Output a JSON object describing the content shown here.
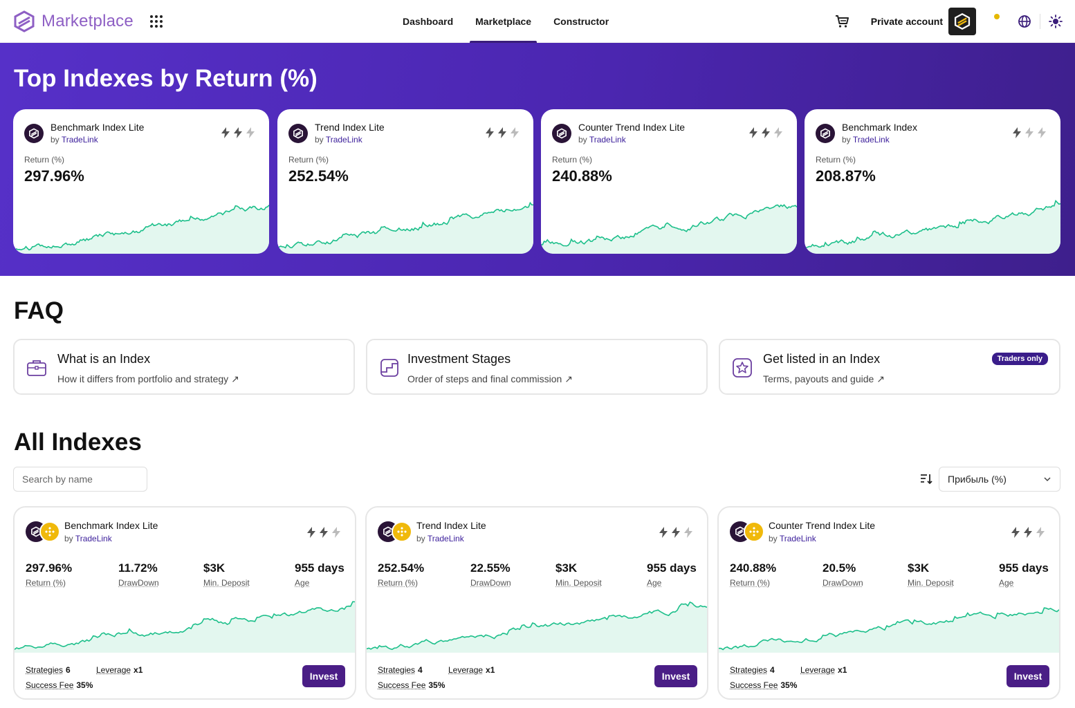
{
  "header": {
    "logo_text": "Marketplace",
    "nav": [
      "Dashboard",
      "Marketplace",
      "Constructor"
    ],
    "active_nav": "Marketplace",
    "account_label": "Private account",
    "accent": "#3a1d7a"
  },
  "hero": {
    "title": "Top Indexes by Return (%)",
    "return_label": "Return (%)",
    "by": "by",
    "cards": [
      {
        "name": "Benchmark Index Lite",
        "provider": "TradeLink",
        "return": "297.96%",
        "bolts_active": 2
      },
      {
        "name": "Trend Index Lite",
        "provider": "TradeLink",
        "return": "252.54%",
        "bolts_active": 2
      },
      {
        "name": "Counter Trend Index Lite",
        "provider": "TradeLink",
        "return": "240.88%",
        "bolts_active": 2
      },
      {
        "name": "Benchmark Index",
        "provider": "TradeLink",
        "return": "208.87%",
        "bolts_active": 1
      }
    ]
  },
  "faq": {
    "title": "FAQ",
    "items": [
      {
        "title": "What is an Index",
        "subtitle": "How it differs from portfolio and strategy ↗",
        "icon": "briefcase-icon"
      },
      {
        "title": "Investment Stages",
        "subtitle": "Order of steps and final commission ↗",
        "icon": "stages-icon"
      },
      {
        "title": "Get listed in an Index",
        "subtitle": "Terms, payouts and guide ↗",
        "icon": "star-icon",
        "badge": "Traders only"
      }
    ]
  },
  "all_indexes": {
    "title": "All Indexes",
    "search_placeholder": "Search by name",
    "sort_value": "Прибыль (%)",
    "labels": {
      "return": "Return (%)",
      "drawdown": "DrawDown",
      "min_deposit": "Min. Deposit",
      "age": "Age",
      "strategies": "Strategies",
      "leverage": "Leverage",
      "success_fee": "Success Fee",
      "invest": "Invest",
      "by": "by"
    },
    "cards": [
      {
        "name": "Benchmark Index Lite",
        "provider": "TradeLink",
        "return": "297.96%",
        "drawdown": "11.72%",
        "min_deposit": "$3K",
        "age": "955 days",
        "strategies": "6",
        "leverage": "x1",
        "success_fee": "35%"
      },
      {
        "name": "Trend Index Lite",
        "provider": "TradeLink",
        "return": "252.54%",
        "drawdown": "22.55%",
        "min_deposit": "$3K",
        "age": "955 days",
        "strategies": "4",
        "leverage": "x1",
        "success_fee": "35%"
      },
      {
        "name": "Counter Trend Index Lite",
        "provider": "TradeLink",
        "return": "240.88%",
        "drawdown": "20.5%",
        "min_deposit": "$3K",
        "age": "955 days",
        "strategies": "4",
        "leverage": "x1",
        "success_fee": "35%"
      }
    ]
  },
  "colors": {
    "hero_start": "#5630c8",
    "hero_end": "#3e1f8c",
    "chart_line": "#1cbf8a",
    "chart_fill": "#e3f7ef",
    "button": "#4a1e86",
    "badge": "#3a1d8a"
  }
}
